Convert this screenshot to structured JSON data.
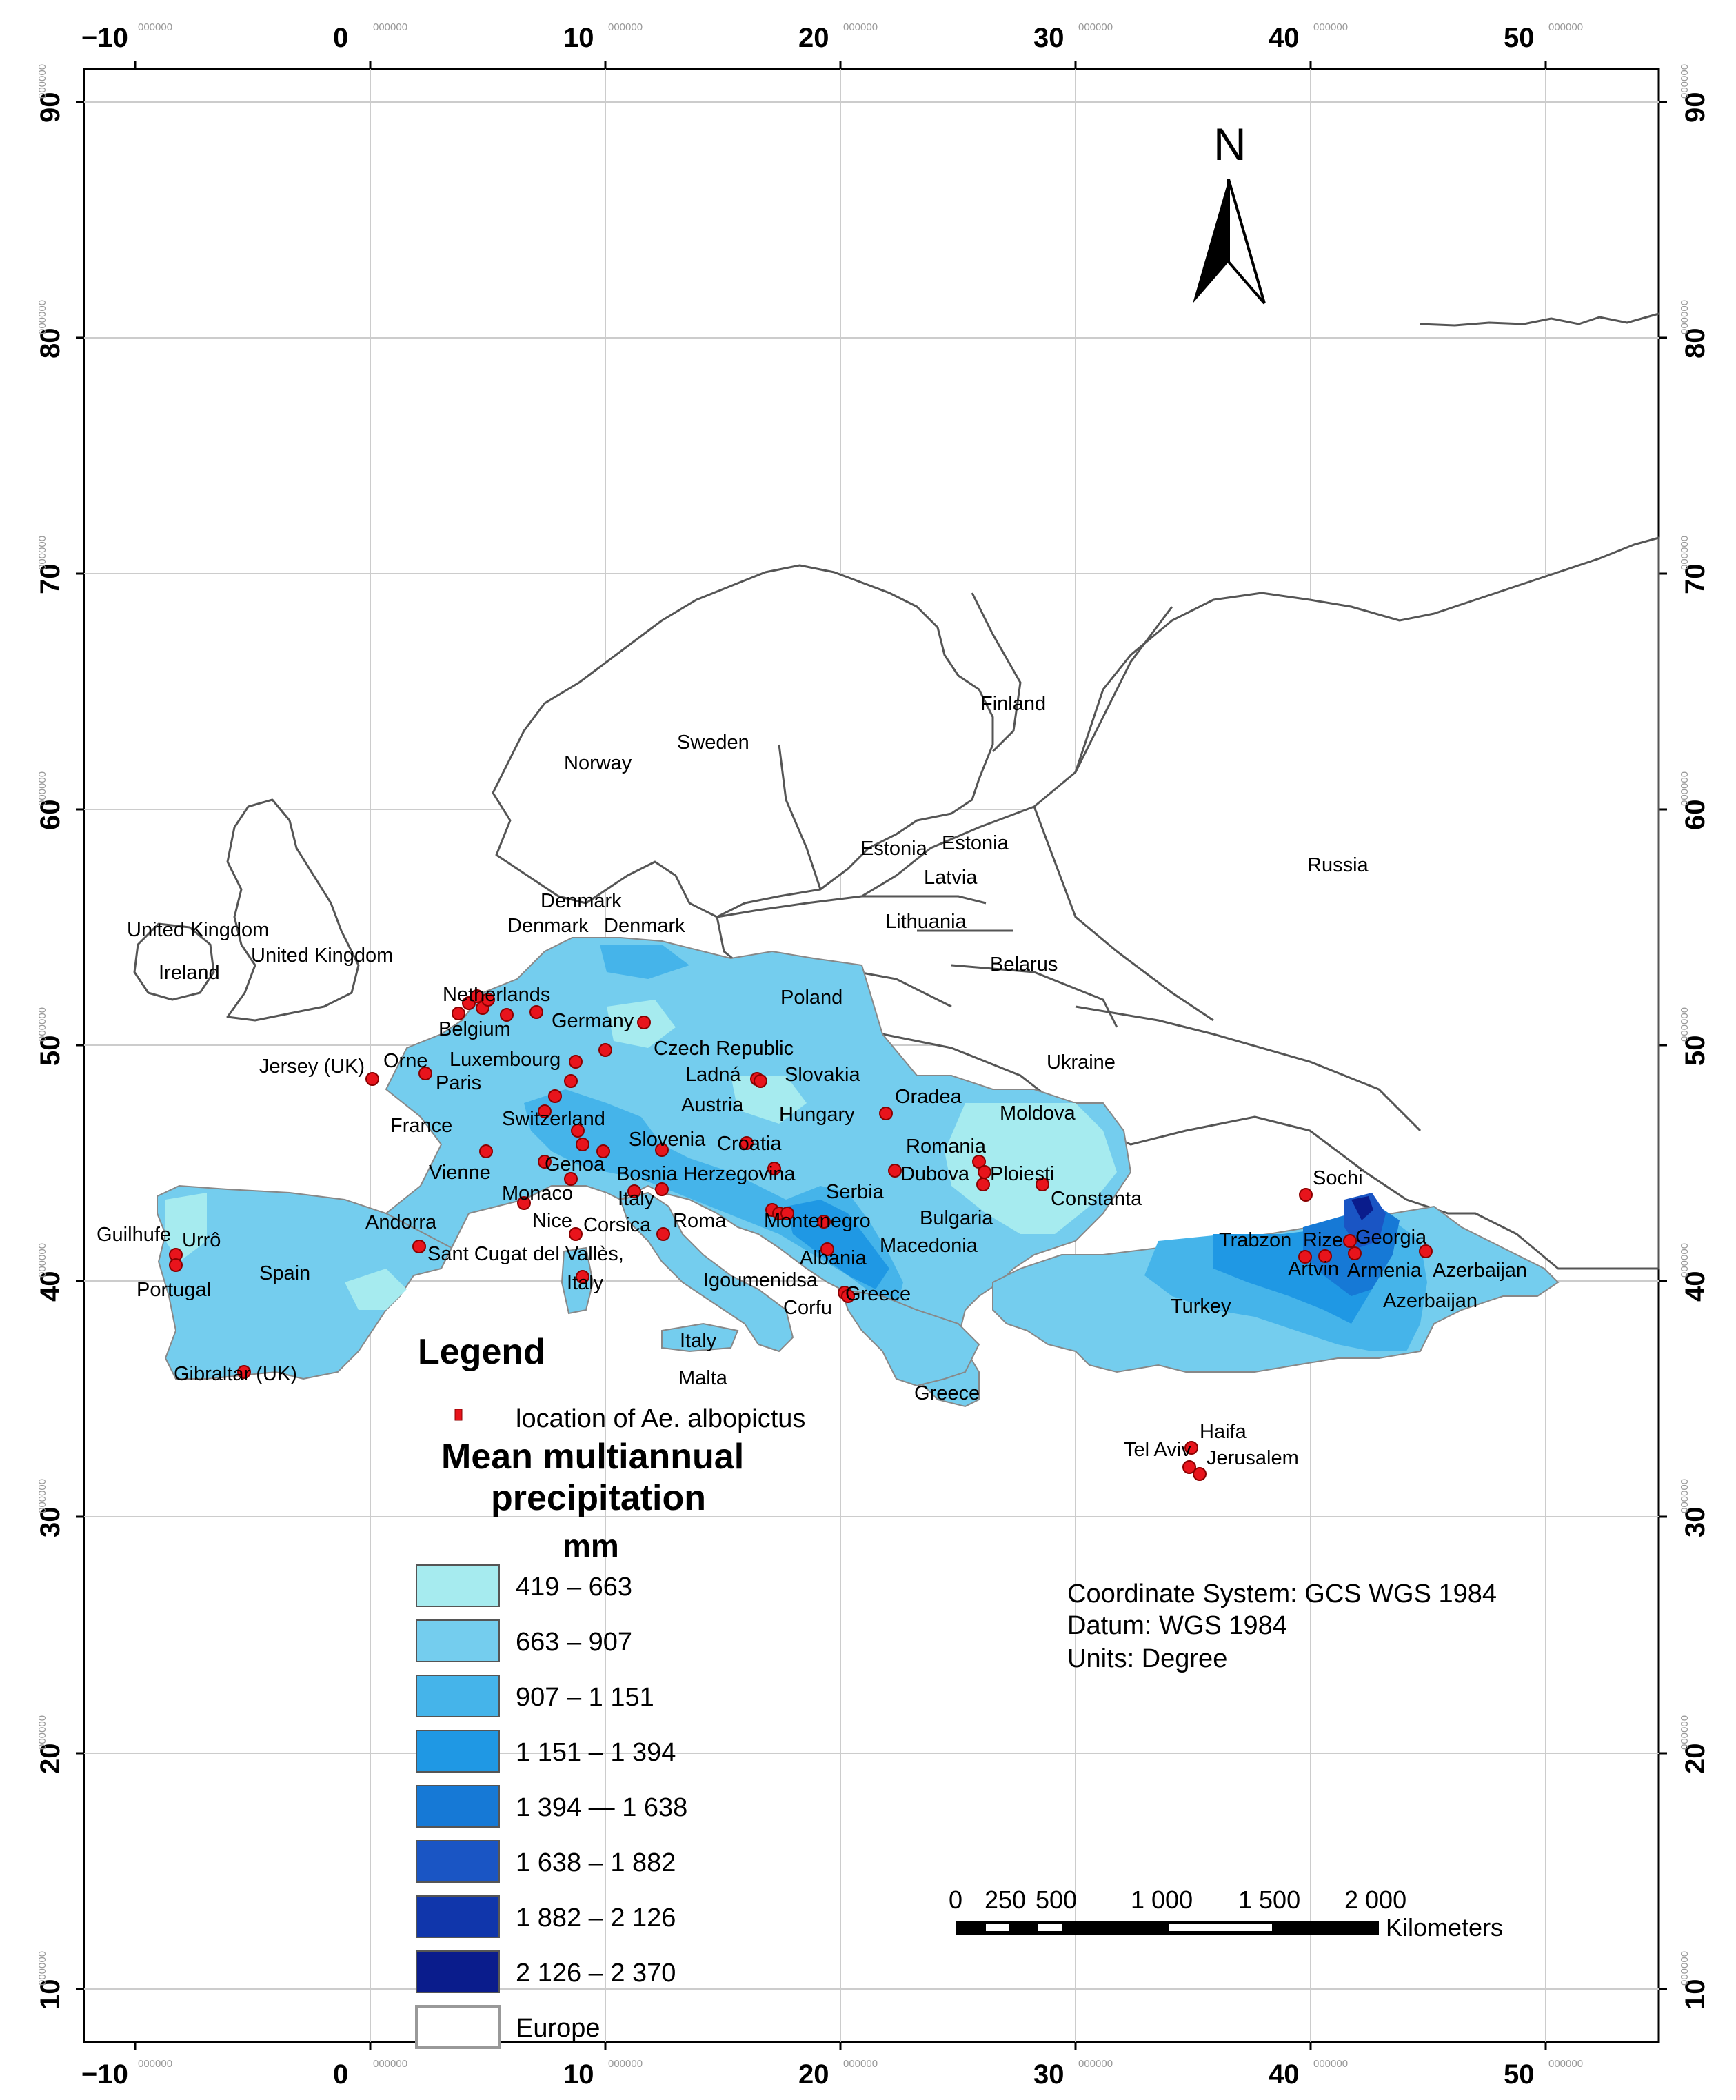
{
  "map": {
    "x_ticks": [
      "−10",
      "0",
      "10",
      "20",
      "30",
      "40",
      "50"
    ],
    "y_ticks": [
      "10",
      "20",
      "30",
      "40",
      "50",
      "60",
      "70",
      "80",
      "90"
    ],
    "tick_suffix": "000000",
    "north_label": "N",
    "labels": [
      "United Kingdom",
      "United Kingdom",
      "Ireland",
      "Denmark",
      "Denmark",
      "Denmark",
      "Norway",
      "Sweden",
      "Finland",
      "Estonia",
      "Estonia",
      "Latvia",
      "Lithuania",
      "Belarus",
      "Russia",
      "Poland",
      "Netherlands",
      "Belgium",
      "Germany",
      "Luxembourg",
      "Jersey (UK)",
      "Orne",
      "Paris",
      "Czech Republic",
      "Ladná",
      "Slovakia",
      "Austria",
      "Hungary",
      "Oradea",
      "Ukraine",
      "Moldova",
      "France",
      "Switzerland",
      "Slovenia",
      "Croatia",
      "Romania",
      "Vienne",
      "Genoa",
      "Bosnia Herzegovina",
      "Dubova",
      "Ploiesti",
      "Monaco",
      "Italy",
      "Serbia",
      "Constanta",
      "Sochi",
      "Guilhufe",
      "Urrô",
      "Andorra",
      "Nice",
      "Corsica",
      "Roma",
      "Montenegro",
      "Bulgaria",
      "Trabzon",
      "Rize",
      "Georgia",
      "Spain",
      "Sant Cugat del Vallès,",
      "Albania",
      "Macedonia",
      "Artvin",
      "Armenia",
      "Azerbaijan",
      "Portugal",
      "Italy",
      "Igoumenidsa",
      "Greece",
      "Corfu",
      "Turkey",
      "Azerbaijan",
      "Italy",
      "Gibraltar (UK)",
      "Malta",
      "Greece",
      "Haifa",
      "Tel Aviv",
      "Jerusalem"
    ]
  },
  "legend": {
    "title": "Legend",
    "point_label": "location of Ae. albopictus",
    "point_color": "#e8141c",
    "heading_line1": "Mean multiannual",
    "heading_line2": "precipitation",
    "unit": "mm",
    "classes": [
      {
        "label": "419 – 663",
        "color": "#a6ebef"
      },
      {
        "label": "663 – 907",
        "color": "#74cdee"
      },
      {
        "label": "907 – 1 151",
        "color": "#45b4ea"
      },
      {
        "label": "1 151 – 1 394",
        "color": "#1f98e4"
      },
      {
        "label": "1 394 — 1 638",
        "color": "#1679d6"
      },
      {
        "label": "1 638 – 1 882",
        "color": "#1a55c4"
      },
      {
        "label": "1 882 – 2 126",
        "color": "#1036ab"
      },
      {
        "label": "2 126 – 2 370",
        "color": "#0a1c8c"
      }
    ],
    "europe_label": "Europe"
  },
  "info": {
    "line1": "Coordinate System: GCS WGS 1984",
    "line2": "Datum: WGS 1984",
    "line3": "Units: Degree"
  },
  "scale_bar": {
    "ticks": [
      "0",
      "250",
      "500",
      "1 000",
      "1 500",
      "2 000"
    ],
    "unit": "Kilometers"
  }
}
